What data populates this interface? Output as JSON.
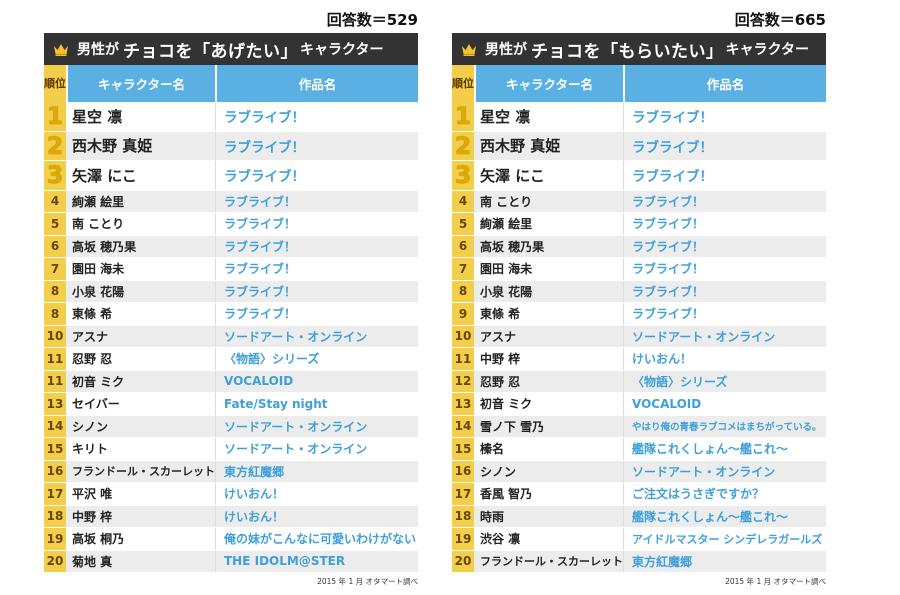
{
  "left": {
    "count_label": "回答数＝529",
    "title_prefix": "男性が",
    "title_main": "チョコを「あげたい」",
    "title_suffix": "キャラクター",
    "header": {
      "rank": "順位",
      "name": "キャラクター名",
      "work": "作品名"
    },
    "rows": [
      {
        "rank": "1",
        "name": "星空 凛",
        "work": "ラブライブ！"
      },
      {
        "rank": "2",
        "name": "西木野 真姫",
        "work": "ラブライブ！"
      },
      {
        "rank": "3",
        "name": "矢澤 にこ",
        "work": "ラブライブ！"
      },
      {
        "rank": "4",
        "name": "絢瀬 絵里",
        "work": "ラブライブ！"
      },
      {
        "rank": "5",
        "name": "南 ことり",
        "work": "ラブライブ！"
      },
      {
        "rank": "6",
        "name": "高坂 穂乃果",
        "work": "ラブライブ！"
      },
      {
        "rank": "7",
        "name": "園田 海未",
        "work": "ラブライブ！"
      },
      {
        "rank": "8",
        "name": "小泉 花陽",
        "work": "ラブライブ！"
      },
      {
        "rank": "8",
        "name": "東條 希",
        "work": "ラブライブ！"
      },
      {
        "rank": "10",
        "name": "アスナ",
        "work": "ソードアート・オンライン"
      },
      {
        "rank": "11",
        "name": "忍野 忍",
        "work": "〈物語〉シリーズ"
      },
      {
        "rank": "11",
        "name": "初音 ミク",
        "work": "VOCALOID"
      },
      {
        "rank": "13",
        "name": "セイバー",
        "work": "Fate/Stay night"
      },
      {
        "rank": "14",
        "name": "シノン",
        "work": "ソードアート・オンライン"
      },
      {
        "rank": "15",
        "name": "キリト",
        "work": "ソードアート・オンライン"
      },
      {
        "rank": "16",
        "name": "フランドール・スカーレット",
        "work": "東方紅魔郷"
      },
      {
        "rank": "17",
        "name": "平沢 唯",
        "work": "けいおん！"
      },
      {
        "rank": "18",
        "name": "中野 梓",
        "work": "けいおん！"
      },
      {
        "rank": "19",
        "name": "高坂 桐乃",
        "work": "俺の妹がこんなに可愛いわけがない"
      },
      {
        "rank": "20",
        "name": "菊地 真",
        "work": "THE IDOLM@STER"
      }
    ],
    "source": "2015 年 1 月 オタマート調べ"
  },
  "right": {
    "count_label": "回答数＝665",
    "title_prefix": "男性が",
    "title_main": "チョコを「もらいたい」",
    "title_suffix": "キャラクター",
    "header": {
      "rank": "順位",
      "name": "キャラクター名",
      "work": "作品名"
    },
    "rows": [
      {
        "rank": "1",
        "name": "星空 凛",
        "work": "ラブライブ！"
      },
      {
        "rank": "2",
        "name": "西木野 真姫",
        "work": "ラブライブ！"
      },
      {
        "rank": "3",
        "name": "矢澤 にこ",
        "work": "ラブライブ！"
      },
      {
        "rank": "4",
        "name": "南 ことり",
        "work": "ラブライブ！"
      },
      {
        "rank": "5",
        "name": "絢瀬 絵里",
        "work": "ラブライブ！"
      },
      {
        "rank": "6",
        "name": "高坂 穂乃果",
        "work": "ラブライブ！"
      },
      {
        "rank": "7",
        "name": "園田 海未",
        "work": "ラブライブ！"
      },
      {
        "rank": "8",
        "name": "小泉 花陽",
        "work": "ラブライブ！"
      },
      {
        "rank": "9",
        "name": "東條 希",
        "work": "ラブライブ！"
      },
      {
        "rank": "10",
        "name": "アスナ",
        "work": "ソードアート・オンライン"
      },
      {
        "rank": "11",
        "name": "中野 梓",
        "work": "けいおん！"
      },
      {
        "rank": "12",
        "name": "忍野 忍",
        "work": "〈物語〉シリーズ"
      },
      {
        "rank": "13",
        "name": "初音 ミク",
        "work": "VOCALOID"
      },
      {
        "rank": "14",
        "name": "雪ノ下 雪乃",
        "work": "やはり俺の青春ラブコメはまちがっている。"
      },
      {
        "rank": "15",
        "name": "榛名",
        "work": "艦隊これくしょん〜艦これ〜"
      },
      {
        "rank": "16",
        "name": "シノン",
        "work": "ソードアート・オンライン"
      },
      {
        "rank": "17",
        "name": "香風 智乃",
        "work": "ご注文はうさぎですか？"
      },
      {
        "rank": "18",
        "name": "時雨",
        "work": "艦隊これくしょん〜艦これ〜"
      },
      {
        "rank": "19",
        "name": "渋谷 凛",
        "work": "アイドルマスター シンデレラガールズ"
      },
      {
        "rank": "20",
        "name": "フランドール・スカーレット",
        "work": "東方紅魔郷"
      }
    ],
    "source": "2015 年 1 月 オタマート調べ"
  }
}
